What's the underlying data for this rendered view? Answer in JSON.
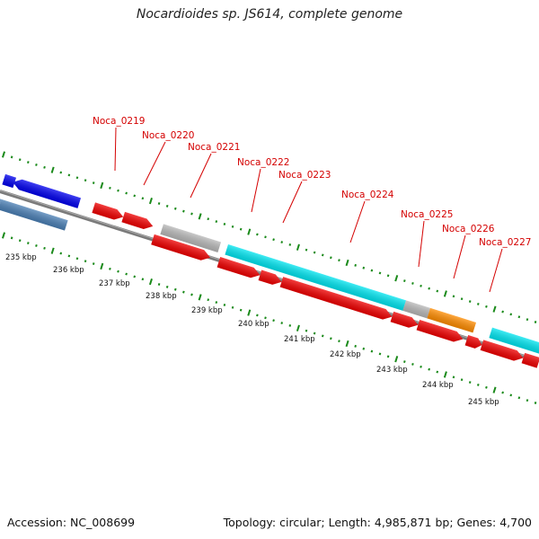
{
  "title": "Nocardioides sp. JS614, complete genome",
  "footer": {
    "accession": "Accession: NC_008699",
    "topology": "Topology: circular; Length: 4,985,871 bp; Genes: 4,700"
  },
  "colors": {
    "backbone": "#808080",
    "gene_red": "#f00000",
    "gene_blue": "#0000ee",
    "gene_steel": "#4a7fb5",
    "gene_cyan": "#00e5f0",
    "gene_gray": "#b8b8b8",
    "gene_orange": "#ff8c00",
    "tick_green": "#1a8a1a",
    "label_red": "#d40000"
  },
  "gene_labels": [
    "Noca_0219",
    "Noca_0220",
    "Noca_0221",
    "Noca_0222",
    "Noca_0223",
    "Noca_0224",
    "Noca_0225",
    "Noca_0226",
    "Noca_0227"
  ],
  "scale_labels": [
    "235 kbp",
    "236 kbp",
    "237 kbp",
    "238 kbp",
    "239 kbp",
    "240 kbp",
    "241 kbp",
    "242 kbp",
    "243 kbp",
    "244 kbp",
    "245 kbp"
  ]
}
